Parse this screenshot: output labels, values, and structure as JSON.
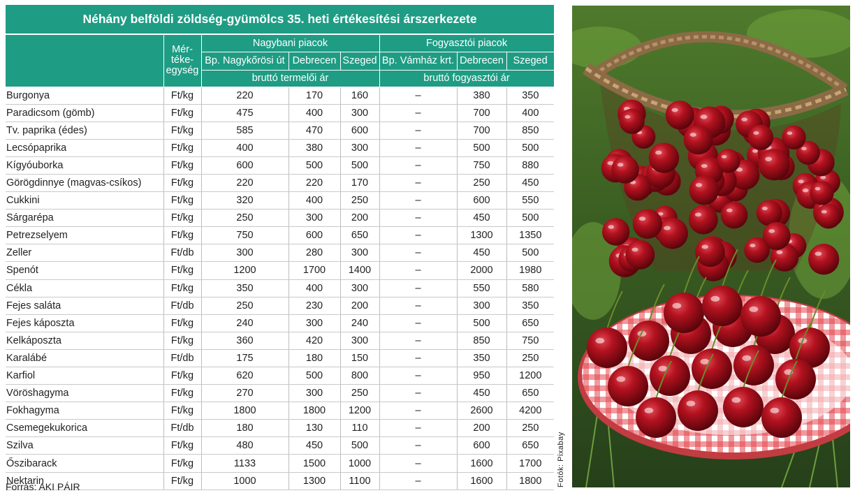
{
  "table": {
    "title": "Néhány belföldi zöldség-gyümölcs 35. heti értékesítési árszerkezete",
    "unit_header": "Mér-\ntéke-\negység",
    "groups": [
      "Nagybani piacok",
      "Fogyasztói piacok"
    ],
    "markets": [
      "Bp. Nagykőrösi út",
      "Debrecen",
      "Szeged",
      "Bp. Vámház krt.",
      "Debrecen",
      "Szeged"
    ],
    "price_types": [
      "bruttó termelői ár",
      "bruttó fogyasztói ár"
    ],
    "rows": [
      [
        "Burgonya",
        "Ft/kg",
        "220",
        "170",
        "160",
        "–",
        "380",
        "350"
      ],
      [
        "Paradicsom (gömb)",
        "Ft/kg",
        "475",
        "400",
        "300",
        "–",
        "700",
        "400"
      ],
      [
        "Tv. paprika (édes)",
        "Ft/kg",
        "585",
        "470",
        "600",
        "–",
        "700",
        "850"
      ],
      [
        "Lecsópaprika",
        "Ft/kg",
        "400",
        "380",
        "300",
        "–",
        "500",
        "500"
      ],
      [
        "Kígyóuborka",
        "Ft/kg",
        "600",
        "500",
        "500",
        "–",
        "750",
        "880"
      ],
      [
        "Görögdinnye (magvas-csíkos)",
        "Ft/kg",
        "220",
        "220",
        "170",
        "–",
        "250",
        "450"
      ],
      [
        "Cukkini",
        "Ft/kg",
        "320",
        "400",
        "250",
        "–",
        "600",
        "550"
      ],
      [
        "Sárgarépa",
        "Ft/kg",
        "250",
        "300",
        "200",
        "–",
        "450",
        "500"
      ],
      [
        "Petrezselyem",
        "Ft/kg",
        "750",
        "600",
        "650",
        "–",
        "1300",
        "1350"
      ],
      [
        "Zeller",
        "Ft/db",
        "300",
        "280",
        "300",
        "–",
        "450",
        "500"
      ],
      [
        "Spenót",
        "Ft/kg",
        "1200",
        "1700",
        "1400",
        "–",
        "2000",
        "1980"
      ],
      [
        "Cékla",
        "Ft/kg",
        "350",
        "400",
        "300",
        "–",
        "550",
        "580"
      ],
      [
        "Fejes saláta",
        "Ft/db",
        "250",
        "230",
        "200",
        "–",
        "300",
        "350"
      ],
      [
        "Fejes káposzta",
        "Ft/kg",
        "240",
        "300",
        "240",
        "–",
        "500",
        "650"
      ],
      [
        "Kelkáposzta",
        "Ft/kg",
        "360",
        "420",
        "300",
        "–",
        "850",
        "750"
      ],
      [
        "Karalábé",
        "Ft/db",
        "175",
        "180",
        "150",
        "–",
        "350",
        "250"
      ],
      [
        "Karfiol",
        "Ft/kg",
        "620",
        "500",
        "800",
        "–",
        "950",
        "1200"
      ],
      [
        "Vöröshagyma",
        "Ft/kg",
        "270",
        "300",
        "250",
        "–",
        "450",
        "650"
      ],
      [
        "Fokhagyma",
        "Ft/kg",
        "1800",
        "1800",
        "1200",
        "–",
        "2600",
        "4200"
      ],
      [
        "Csemegekukorica",
        "Ft/db",
        "180",
        "130",
        "110",
        "–",
        "200",
        "250"
      ],
      [
        "Szilva",
        "Ft/kg",
        "480",
        "450",
        "500",
        "–",
        "600",
        "650"
      ],
      [
        "Őszibarack",
        "Ft/kg",
        "1133",
        "1500",
        "1000",
        "–",
        "1600",
        "1700"
      ],
      [
        "Nektarin",
        "Ft/kg",
        "1000",
        "1300",
        "1100",
        "–",
        "1600",
        "1800"
      ]
    ],
    "source": "Forrás: AKI PÁIR"
  },
  "photo_credit": "Fotók: Pixabay",
  "colors": {
    "header_bg": "#1e9c84",
    "header_text": "#ffffff",
    "grid_line": "#c9c9c9"
  }
}
